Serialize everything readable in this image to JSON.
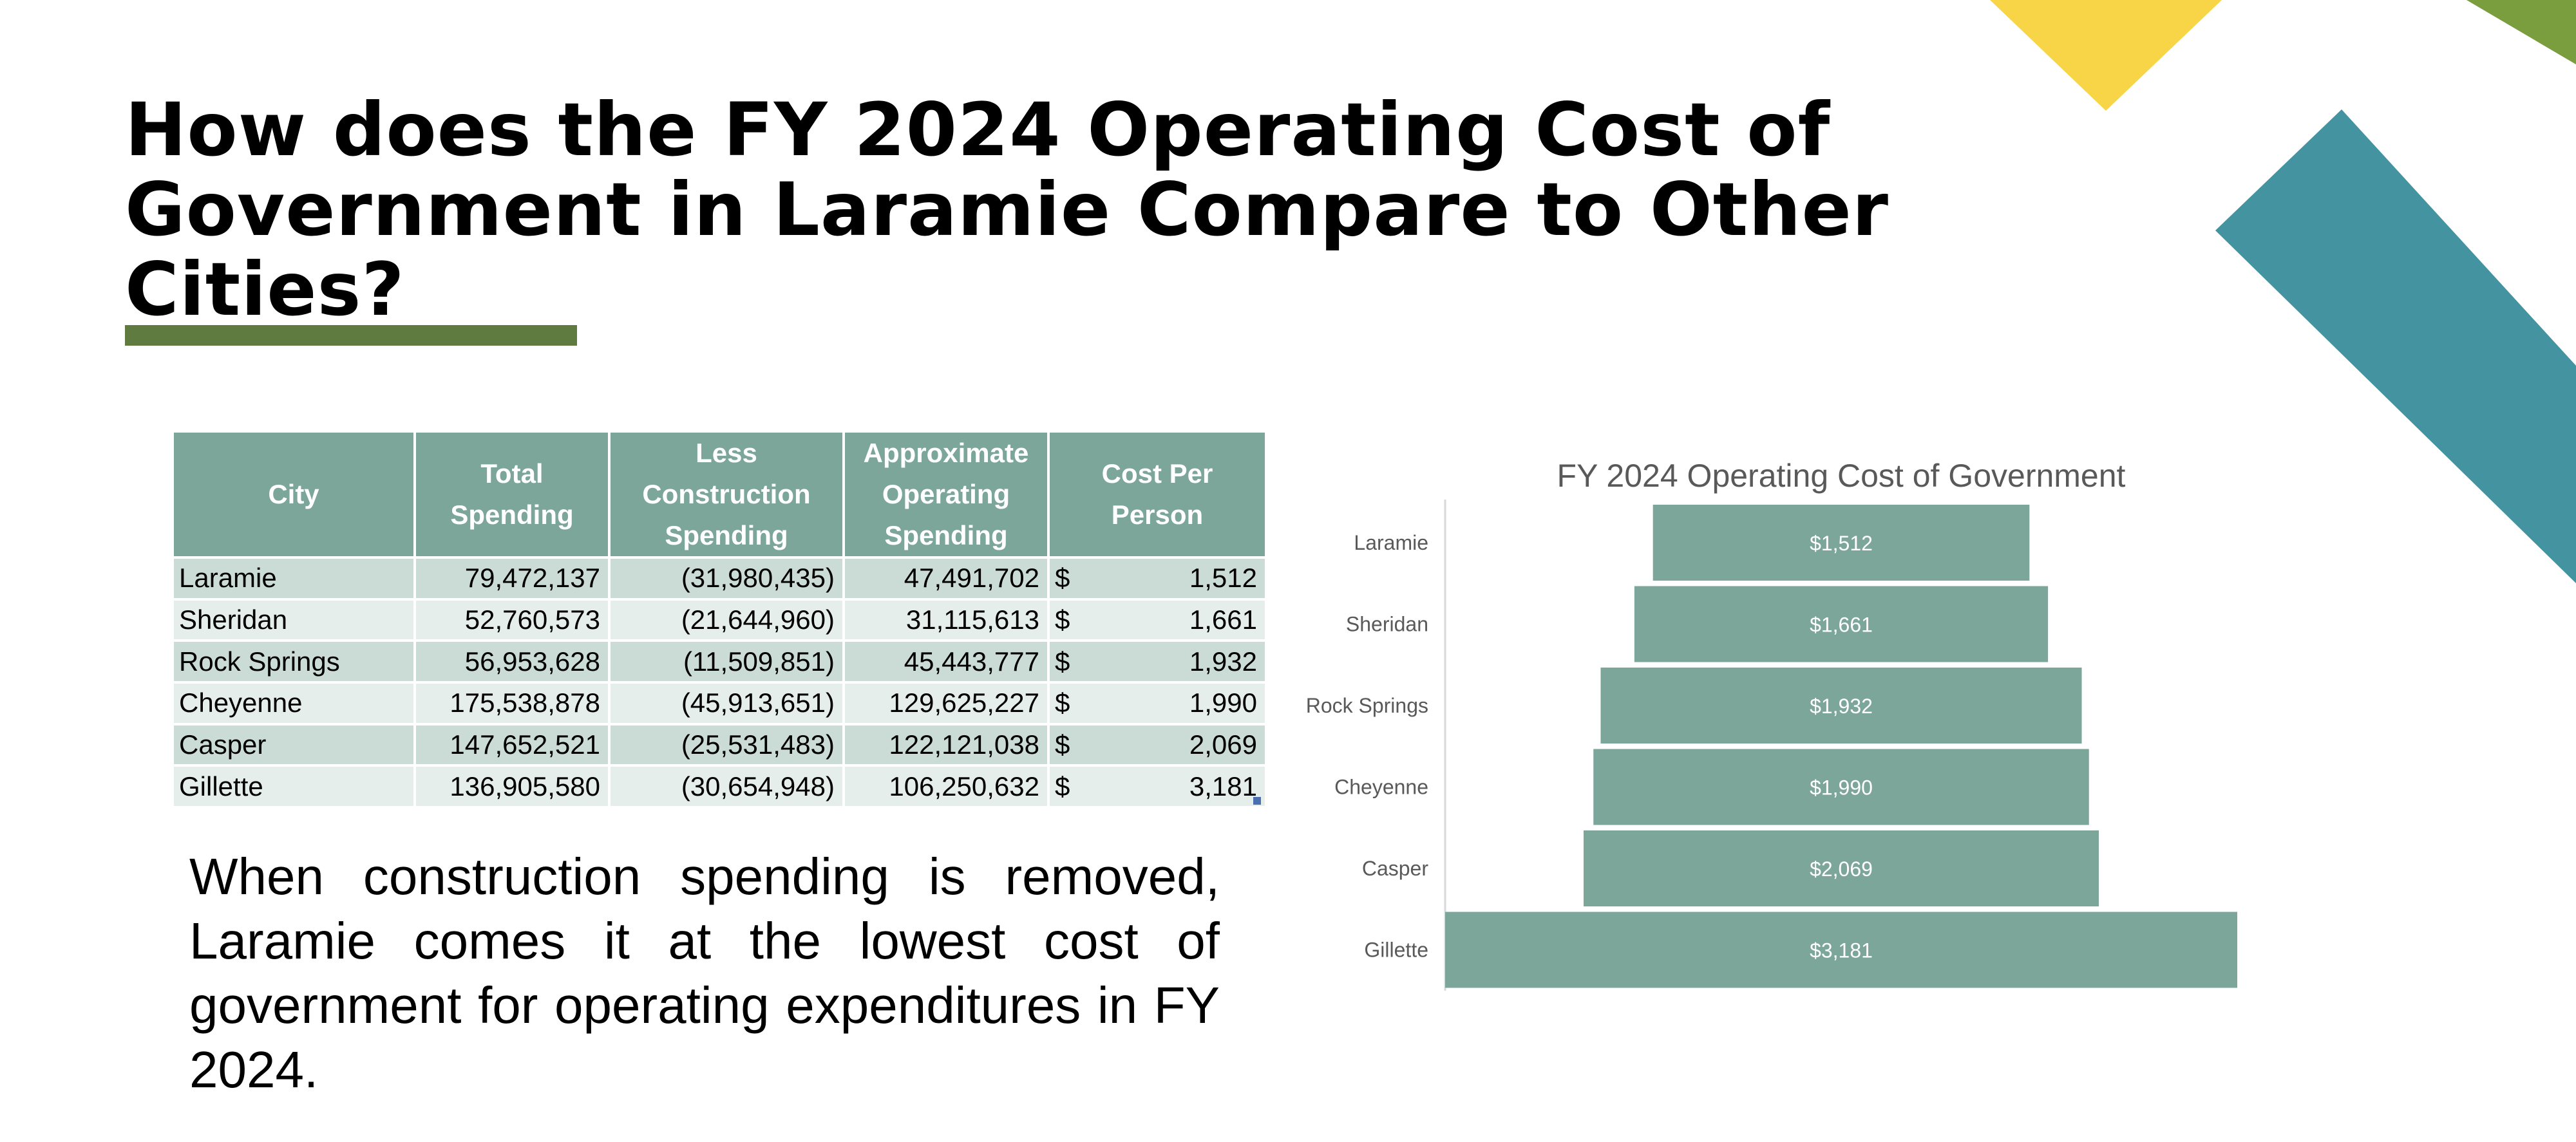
{
  "slide": {
    "title_lines": [
      "How does the FY 2024 Operating Cost of",
      "Government in Laramie Compare to Other Cities?"
    ],
    "note": "When construction spending is removed, Laramie comes it at the lowest cost of government for operating expenditures in FY 2024."
  },
  "colors": {
    "accent_green": "#5f7b40",
    "light_green": "#7a9e3e",
    "yellow": "#f8d547",
    "teal": "#4393a0",
    "table_header": "#7ba699",
    "table_row_dark": "#cbdcd6",
    "table_row_light": "#e6eeeb",
    "bar": "#7ba699"
  },
  "table": {
    "headers": [
      [
        "City"
      ],
      [
        "Total",
        "Spending"
      ],
      [
        "Less",
        "Construction",
        "Spending"
      ],
      [
        "Approximate",
        "Operating",
        "Spending"
      ],
      [
        "Cost Per",
        "Person"
      ]
    ],
    "rows": [
      {
        "city": "Laramie",
        "total": "79,472,137",
        "construction": "(31,980,435)",
        "operating": "47,491,702",
        "currency": "$",
        "per_person": "1,512"
      },
      {
        "city": "Sheridan",
        "total": "52,760,573",
        "construction": "(21,644,960)",
        "operating": "31,115,613",
        "currency": "$",
        "per_person": "1,661"
      },
      {
        "city": "Rock Springs",
        "total": "56,953,628",
        "construction": "(11,509,851)",
        "operating": "45,443,777",
        "currency": "$",
        "per_person": "1,932"
      },
      {
        "city": "Cheyenne",
        "total": "175,538,878",
        "construction": "(45,913,651)",
        "operating": "129,625,227",
        "currency": "$",
        "per_person": "1,990"
      },
      {
        "city": "Casper",
        "total": "147,652,521",
        "construction": "(25,531,483)",
        "operating": "122,121,038",
        "currency": "$",
        "per_person": "2,069"
      },
      {
        "city": "Gillette",
        "total": "136,905,580",
        "construction": "(30,654,948)",
        "operating": "106,250,632",
        "currency": "$",
        "per_person": "3,181"
      }
    ]
  },
  "chart_data": {
    "type": "bar",
    "orientation": "horizontal",
    "style": "funnel",
    "title": "FY 2024 Operating Cost of Government",
    "categories": [
      "Laramie",
      "Sheridan",
      "Rock Springs",
      "Cheyenne",
      "Casper",
      "Gillette"
    ],
    "values": [
      1512,
      1661,
      1932,
      1990,
      2069,
      3181
    ],
    "labels": [
      "$1,512",
      "$1,661",
      "$1,932",
      "$1,990",
      "$2,069",
      "$3,181"
    ],
    "xlim": [
      0,
      3181
    ],
    "grid": false,
    "legend": "none"
  }
}
